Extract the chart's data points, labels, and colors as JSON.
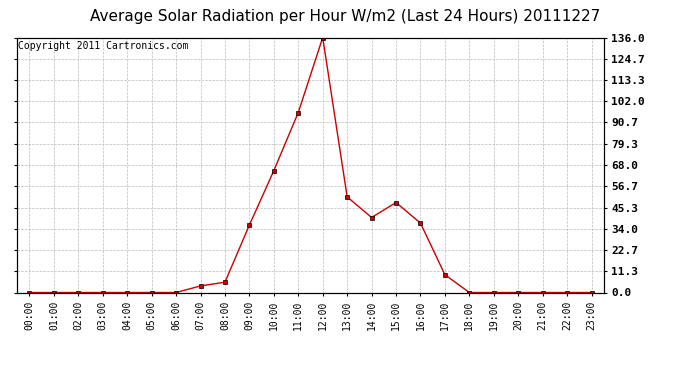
{
  "title": "Average Solar Radiation per Hour W/m2 (Last 24 Hours) 20111227",
  "copyright": "Copyright 2011 Cartronics.com",
  "hours": [
    "00:00",
    "01:00",
    "02:00",
    "03:00",
    "04:00",
    "05:00",
    "06:00",
    "07:00",
    "08:00",
    "09:00",
    "10:00",
    "11:00",
    "12:00",
    "13:00",
    "14:00",
    "15:00",
    "16:00",
    "17:00",
    "18:00",
    "19:00",
    "20:00",
    "21:00",
    "22:00",
    "23:00"
  ],
  "values": [
    0.0,
    0.0,
    0.0,
    0.0,
    0.0,
    0.0,
    0.0,
    3.5,
    5.5,
    36.0,
    65.0,
    96.0,
    136.0,
    51.0,
    40.0,
    48.0,
    37.0,
    9.5,
    0.0,
    0.0,
    0.0,
    0.0,
    0.0,
    0.0
  ],
  "yticks": [
    0.0,
    11.3,
    22.7,
    34.0,
    45.3,
    56.7,
    68.0,
    79.3,
    90.7,
    102.0,
    113.3,
    124.7,
    136.0
  ],
  "ymax": 136.0,
  "ymin": 0.0,
  "line_color": "#cc0000",
  "marker": "s",
  "marker_size": 2.5,
  "bg_color": "#ffffff",
  "grid_color": "#bbbbbb",
  "title_fontsize": 11,
  "copyright_fontsize": 7,
  "tick_fontsize": 8,
  "xlabel_fontsize": 7
}
